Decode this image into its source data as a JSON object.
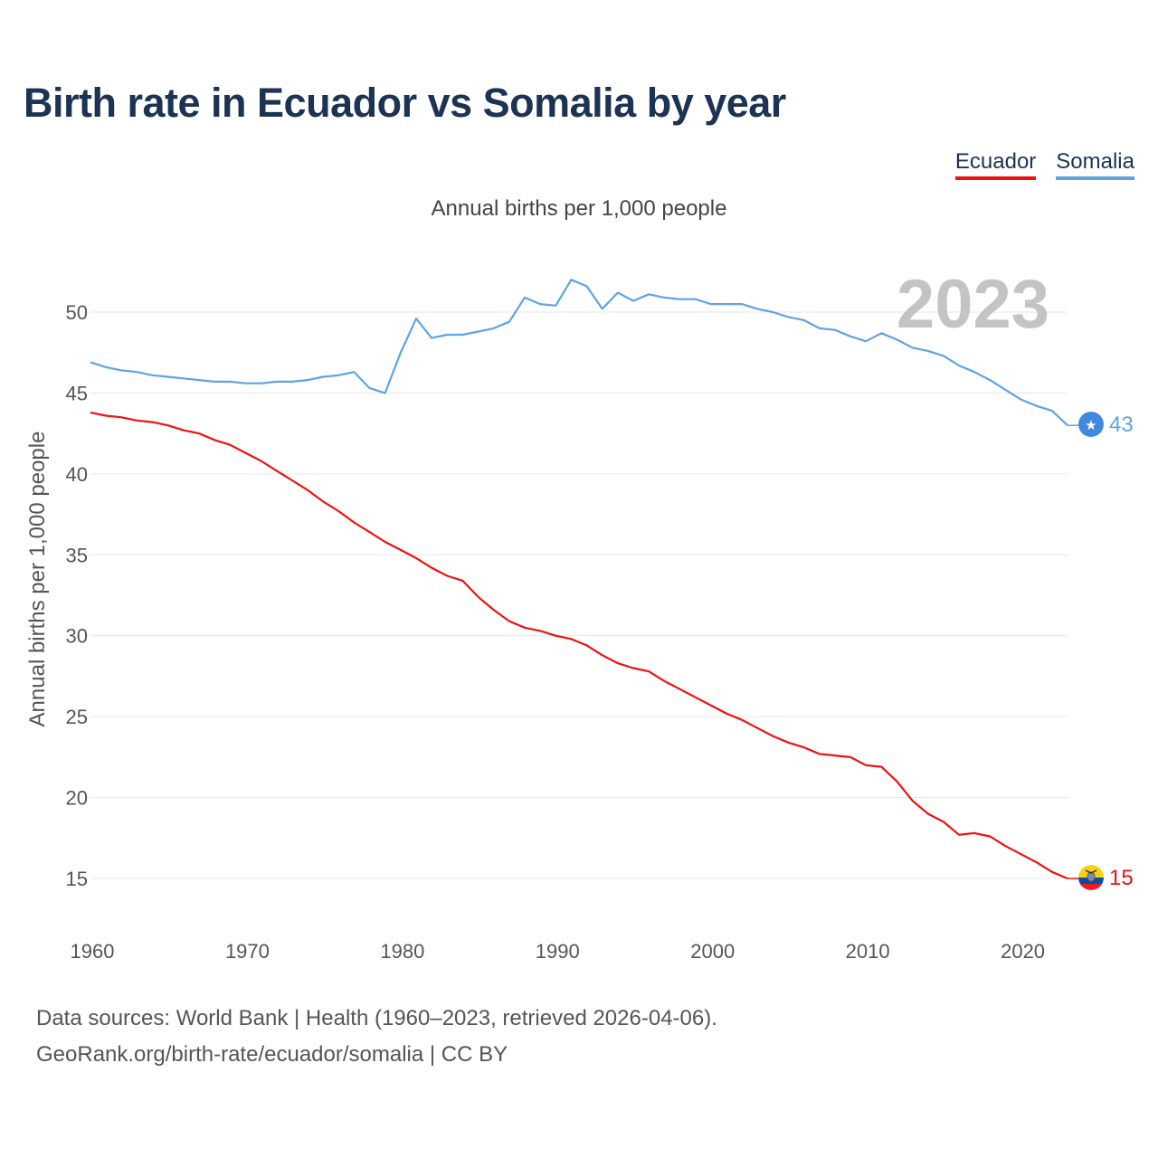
{
  "title": "Birth rate in Ecuador vs Somalia by year",
  "legend": [
    {
      "name": "Ecuador",
      "color": "#ee1111"
    },
    {
      "name": "Somalia",
      "color": "#5fa3e4"
    }
  ],
  "source": {
    "line1": "Data sources: World Bank | Health (1960–2023, retrieved 2026-04-06).",
    "line2": "GeoRank.org/birth-rate/ecuador/somalia | CC BY"
  },
  "chart_data": {
    "type": "line",
    "title": "Birth rate in Ecuador vs Somalia by year",
    "subtitle": "Annual births per 1,000 people",
    "xlabel": "",
    "ylabel": "Annual births per 1,000 people",
    "year_label": "2023",
    "xlim": [
      1960,
      2023
    ],
    "ylim": [
      12,
      55
    ],
    "x_ticks": [
      1960,
      1970,
      1980,
      1990,
      2000,
      2010,
      2020
    ],
    "y_ticks": [
      15,
      20,
      25,
      30,
      35,
      40,
      45,
      50
    ],
    "grid": true,
    "x": [
      1960,
      1961,
      1962,
      1963,
      1964,
      1965,
      1966,
      1967,
      1968,
      1969,
      1970,
      1971,
      1972,
      1973,
      1974,
      1975,
      1976,
      1977,
      1978,
      1979,
      1980,
      1981,
      1982,
      1983,
      1984,
      1985,
      1986,
      1987,
      1988,
      1989,
      1990,
      1991,
      1992,
      1993,
      1994,
      1995,
      1996,
      1997,
      1998,
      1999,
      2000,
      2001,
      2002,
      2003,
      2004,
      2005,
      2006,
      2007,
      2008,
      2009,
      2010,
      2011,
      2012,
      2013,
      2014,
      2015,
      2016,
      2017,
      2018,
      2019,
      2020,
      2021,
      2022,
      2023
    ],
    "series": [
      {
        "name": "Ecuador",
        "color": "#ee1111",
        "end_label": "15",
        "values": [
          43.8,
          43.6,
          43.5,
          43.3,
          43.2,
          43.0,
          42.7,
          42.5,
          42.1,
          41.8,
          41.3,
          40.8,
          40.2,
          39.6,
          39.0,
          38.3,
          37.7,
          37.0,
          36.4,
          35.8,
          35.3,
          34.8,
          34.2,
          33.7,
          33.4,
          32.4,
          31.6,
          30.9,
          30.5,
          30.3,
          30.0,
          29.8,
          29.4,
          28.8,
          28.3,
          28.0,
          27.8,
          27.2,
          26.7,
          26.2,
          25.7,
          25.2,
          24.8,
          24.3,
          23.8,
          23.4,
          23.1,
          22.7,
          22.6,
          22.5,
          22.0,
          21.9,
          21.0,
          19.8,
          19.0,
          18.5,
          17.7,
          17.8,
          17.6,
          17.0,
          16.5,
          16.0,
          15.4,
          15.0
        ]
      },
      {
        "name": "Somalia",
        "color": "#5fa3e4",
        "end_label": "43",
        "values": [
          46.9,
          46.6,
          46.4,
          46.3,
          46.1,
          46.0,
          45.9,
          45.8,
          45.7,
          45.7,
          45.6,
          45.6,
          45.7,
          45.7,
          45.8,
          46.0,
          46.1,
          46.3,
          45.3,
          45.0,
          47.5,
          49.6,
          48.4,
          48.6,
          48.6,
          48.8,
          49.0,
          49.4,
          50.9,
          50.5,
          50.4,
          52.0,
          51.6,
          50.2,
          51.2,
          50.7,
          51.1,
          50.9,
          50.8,
          50.8,
          50.5,
          50.5,
          50.5,
          50.2,
          50.0,
          49.7,
          49.5,
          49.0,
          48.9,
          48.5,
          48.2,
          48.7,
          48.3,
          47.8,
          47.6,
          47.3,
          46.7,
          46.3,
          45.8,
          45.2,
          44.6,
          44.2,
          43.9,
          43.0
        ]
      }
    ]
  }
}
